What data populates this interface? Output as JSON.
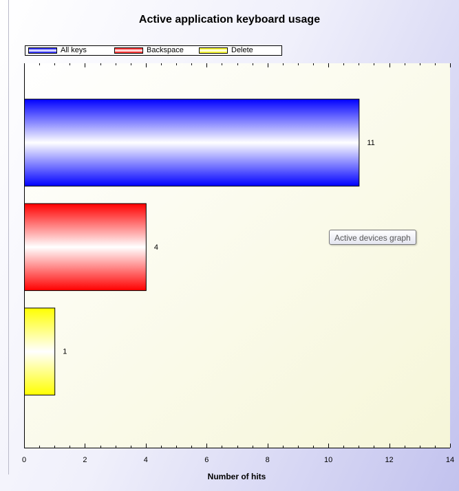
{
  "chart_data": {
    "type": "bar",
    "orientation": "horizontal",
    "title": "Active application keyboard usage",
    "xlabel": "Number of hits",
    "ylabel": "",
    "xlim": [
      0,
      14
    ],
    "xticks": [
      0,
      2,
      4,
      6,
      8,
      10,
      12,
      14
    ],
    "grid": false,
    "legend_position": "top-left",
    "series": [
      {
        "name": "All keys",
        "value": 11,
        "label": "11",
        "color": "#0000ff"
      },
      {
        "name": "Backspace",
        "value": 4,
        "label": "4",
        "color": "#ff0000"
      },
      {
        "name": "Delete",
        "value": 1,
        "label": "1",
        "color": "#ffff00"
      }
    ]
  },
  "tooltip": {
    "text": "Active devices graph"
  },
  "colors": {
    "plot_background": "#fafae6",
    "window_accent": "#c2c2ee"
  }
}
